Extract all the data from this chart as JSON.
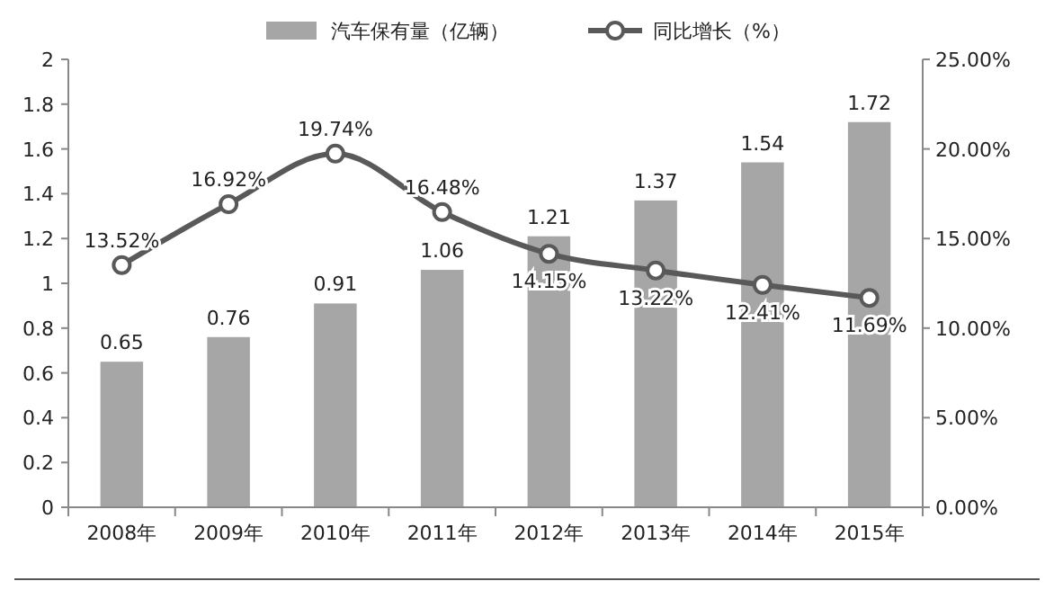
{
  "chart_data": {
    "type": "bar",
    "categories": [
      "2008年",
      "2009年",
      "2010年",
      "2011年",
      "2012年",
      "2013年",
      "2014年",
      "2015年"
    ],
    "series": [
      {
        "name": "汽车保有量（亿辆）",
        "color": "#a6a6a6",
        "values": [
          0.65,
          0.76,
          0.91,
          1.06,
          1.21,
          1.37,
          1.54,
          1.72
        ]
      },
      {
        "name": "同比增长（%）",
        "type": "line",
        "axis": "y2",
        "color": "#595959",
        "values": [
          13.52,
          16.92,
          19.74,
          16.48,
          14.15,
          13.22,
          12.41,
          11.69
        ],
        "value_labels": [
          "13.52%",
          "16.92%",
          "19.74%",
          "16.48%",
          "14.15%",
          "13.22%",
          "12.41%",
          "11.69%"
        ]
      }
    ],
    "ylim": [
      0,
      2
    ],
    "yticks": [
      0,
      0.2,
      0.4,
      0.6,
      0.8,
      1,
      1.2,
      1.4,
      1.6,
      1.8,
      2
    ],
    "y2lim": [
      0,
      25
    ],
    "y2ticks": [
      {
        "value": 0,
        "label": "0.00%"
      },
      {
        "value": 5,
        "label": "5.00%"
      },
      {
        "value": 10,
        "label": "10.00%"
      },
      {
        "value": 15,
        "label": "15.00%"
      },
      {
        "value": 20,
        "label": "20.00%"
      },
      {
        "value": 25,
        "label": "25.00%"
      }
    ],
    "data_labels": true,
    "marker": "circle",
    "legend": "top",
    "grid": false
  }
}
